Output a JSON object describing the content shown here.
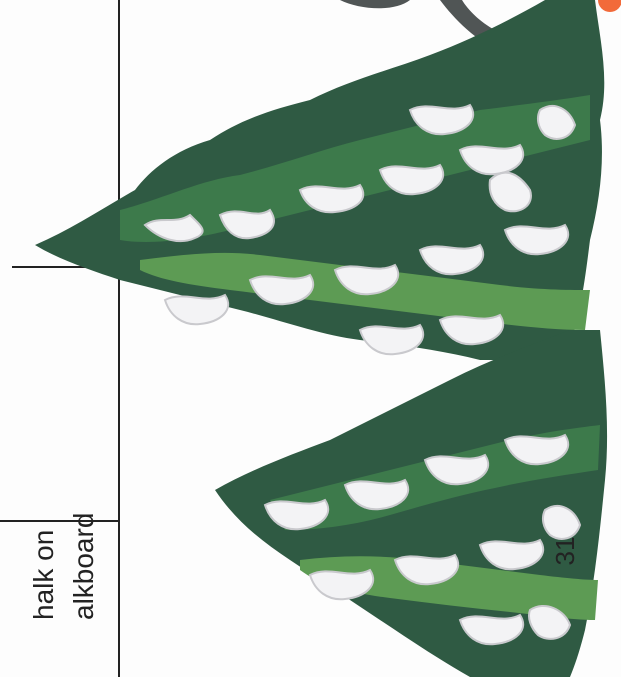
{
  "calendar_cell": {
    "day_number": "31",
    "caption_line_1": "halk on",
    "caption_line_2": "alkboard"
  },
  "colors": {
    "tree_dark": "#2f5a43",
    "tree_mid": "#3d7a4b",
    "tree_light": "#5d9b54",
    "snow": "#f3f3f5",
    "snow_shadow": "#c9c9cd",
    "ornament": "#f26a3a",
    "figure_gray": "#505555",
    "line": "#222222"
  }
}
